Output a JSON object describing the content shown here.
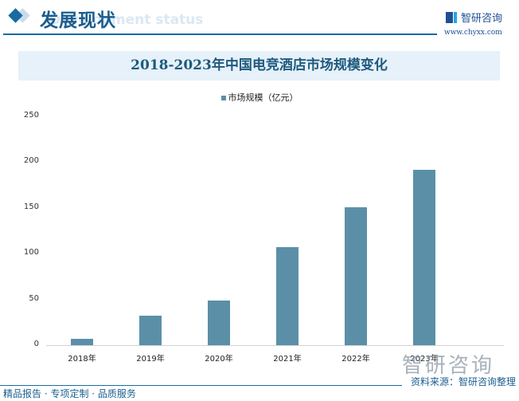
{
  "header": {
    "section_title": "发展现状",
    "section_subtitle": "Development status",
    "brand_name": "智研咨询",
    "brand_url": "www.chyxx.com"
  },
  "chart_data": {
    "type": "bar",
    "title": "2018-2023年中国电竞酒店市场规模变化",
    "categories": [
      "2018年",
      "2019年",
      "2020年",
      "2021年",
      "2022年",
      "2023年"
    ],
    "series": [
      {
        "name": "市场规模（亿元）",
        "values": [
          7,
          32.5,
          49,
          107,
          151,
          192
        ],
        "color": "#5b8fa8"
      }
    ],
    "xlabel": "",
    "ylabel": "",
    "ylim": [
      0,
      250
    ],
    "yticks": [
      "0",
      "50",
      "100",
      "150",
      "200",
      "250"
    ],
    "grid": false,
    "legend_position": "top"
  },
  "footer": {
    "source": "资料来源：智研咨询整理",
    "slogan": "精品报告 · 专项定制 · 品质服务",
    "watermark": "智研咨询"
  }
}
